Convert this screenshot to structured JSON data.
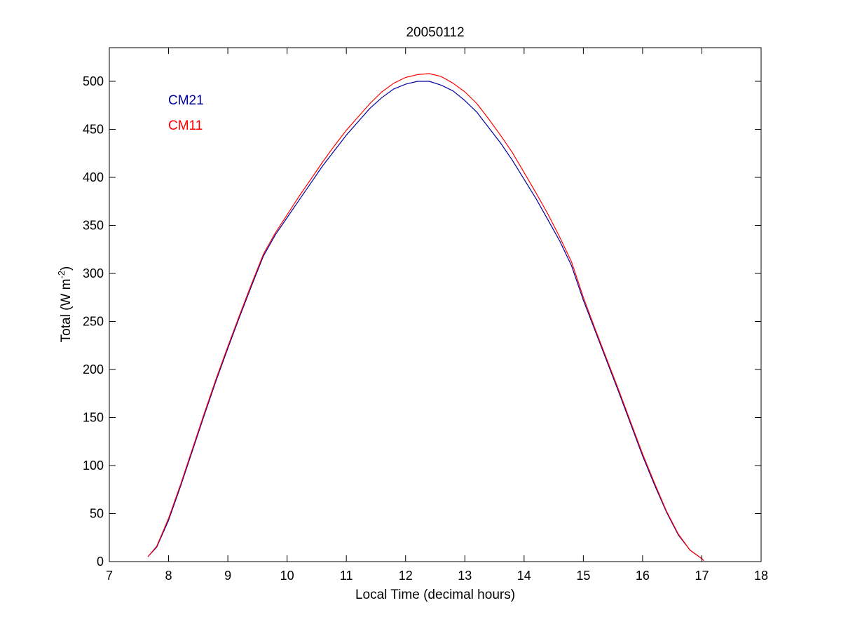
{
  "chart_data": {
    "type": "line",
    "title": "20050112",
    "xlabel": "Local Time (decimal hours)",
    "ylabel": {
      "prefix": "Total (W m",
      "superscript": "-2",
      "suffix": ")"
    },
    "xlim": [
      7,
      18
    ],
    "ylim": [
      0,
      535
    ],
    "xticks": [
      7,
      8,
      9,
      10,
      11,
      12,
      13,
      14,
      15,
      16,
      17,
      18
    ],
    "yticks": [
      0,
      50,
      100,
      150,
      200,
      250,
      300,
      350,
      400,
      450,
      500
    ],
    "grid": false,
    "legend_placement": "top-left",
    "series": [
      {
        "name": "CM21",
        "color": "#0000a0",
        "points": [
          [
            7.65,
            5
          ],
          [
            7.8,
            15
          ],
          [
            8.0,
            43
          ],
          [
            8.2,
            78
          ],
          [
            8.4,
            115
          ],
          [
            8.6,
            152
          ],
          [
            8.8,
            188
          ],
          [
            9.0,
            222
          ],
          [
            9.2,
            255
          ],
          [
            9.4,
            287
          ],
          [
            9.6,
            318
          ],
          [
            9.8,
            340
          ],
          [
            10.0,
            358
          ],
          [
            10.2,
            376
          ],
          [
            10.4,
            394
          ],
          [
            10.6,
            412
          ],
          [
            10.8,
            428
          ],
          [
            11.0,
            444
          ],
          [
            11.2,
            458
          ],
          [
            11.4,
            472
          ],
          [
            11.6,
            483
          ],
          [
            11.8,
            492
          ],
          [
            12.0,
            497
          ],
          [
            12.2,
            500
          ],
          [
            12.4,
            500
          ],
          [
            12.6,
            496
          ],
          [
            12.8,
            490
          ],
          [
            13.0,
            480
          ],
          [
            13.2,
            468
          ],
          [
            13.4,
            452
          ],
          [
            13.6,
            436
          ],
          [
            13.8,
            418
          ],
          [
            14.0,
            398
          ],
          [
            14.2,
            378
          ],
          [
            14.4,
            356
          ],
          [
            14.6,
            334
          ],
          [
            14.8,
            308
          ],
          [
            15.0,
            272
          ],
          [
            15.2,
            240
          ],
          [
            15.4,
            208
          ],
          [
            15.6,
            176
          ],
          [
            15.8,
            143
          ],
          [
            16.0,
            110
          ],
          [
            16.2,
            80
          ],
          [
            16.4,
            52
          ],
          [
            16.6,
            28
          ],
          [
            16.8,
            12
          ],
          [
            17.0,
            3
          ],
          [
            17.03,
            1
          ]
        ]
      },
      {
        "name": "CM11",
        "color": "#ff0000",
        "points": [
          [
            7.65,
            5
          ],
          [
            7.8,
            16
          ],
          [
            8.0,
            45
          ],
          [
            8.2,
            80
          ],
          [
            8.4,
            117
          ],
          [
            8.6,
            154
          ],
          [
            8.8,
            190
          ],
          [
            9.0,
            224
          ],
          [
            9.2,
            257
          ],
          [
            9.4,
            289
          ],
          [
            9.6,
            320
          ],
          [
            9.8,
            342
          ],
          [
            10.0,
            361
          ],
          [
            10.2,
            380
          ],
          [
            10.4,
            398
          ],
          [
            10.6,
            416
          ],
          [
            10.8,
            433
          ],
          [
            11.0,
            449
          ],
          [
            11.2,
            463
          ],
          [
            11.4,
            477
          ],
          [
            11.6,
            489
          ],
          [
            11.8,
            498
          ],
          [
            12.0,
            504
          ],
          [
            12.2,
            507
          ],
          [
            12.4,
            508
          ],
          [
            12.6,
            505
          ],
          [
            12.8,
            498
          ],
          [
            13.0,
            489
          ],
          [
            13.2,
            477
          ],
          [
            13.4,
            461
          ],
          [
            13.6,
            444
          ],
          [
            13.8,
            426
          ],
          [
            14.0,
            405
          ],
          [
            14.2,
            384
          ],
          [
            14.4,
            362
          ],
          [
            14.6,
            338
          ],
          [
            14.8,
            312
          ],
          [
            15.0,
            275
          ],
          [
            15.2,
            242
          ],
          [
            15.4,
            210
          ],
          [
            15.6,
            178
          ],
          [
            15.8,
            145
          ],
          [
            16.0,
            112
          ],
          [
            16.2,
            82
          ],
          [
            16.4,
            53
          ],
          [
            16.6,
            29
          ],
          [
            16.8,
            12
          ],
          [
            17.0,
            3
          ],
          [
            17.03,
            1
          ]
        ]
      }
    ]
  }
}
